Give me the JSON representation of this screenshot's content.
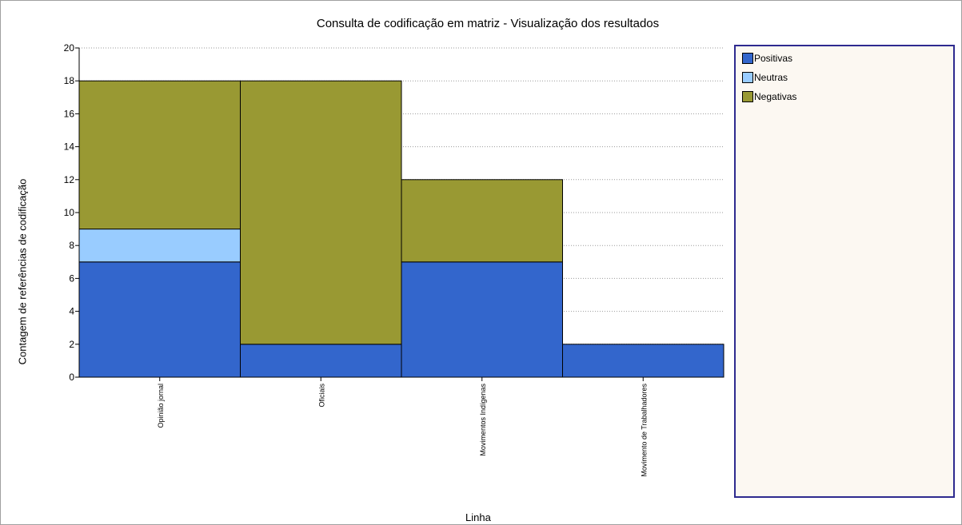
{
  "chart_data": {
    "type": "bar",
    "stacked": true,
    "title": "Consulta de codificação em matriz - Visualização dos resultados",
    "xlabel": "Linha",
    "ylabel": "Contagem de referências de codificação",
    "ylim": [
      0,
      20
    ],
    "yticks": [
      "0",
      "2",
      "4",
      "6",
      "8",
      "10",
      "12",
      "14",
      "16",
      "18",
      "20"
    ],
    "grid": true,
    "legend_position": "right",
    "categories": [
      "Opinião jornal",
      "Oficiais",
      "Movimentos Indígenas",
      "Movimento de Trabalhadores"
    ],
    "series": [
      {
        "name": "Positivas",
        "color": "#3366cc",
        "values": [
          7,
          2,
          7,
          2
        ]
      },
      {
        "name": "Neutras",
        "color": "#99ccff",
        "values": [
          2,
          0,
          0,
          0
        ]
      },
      {
        "name": "Negativas",
        "color": "#999933",
        "values": [
          9,
          16,
          5,
          0
        ]
      }
    ]
  }
}
